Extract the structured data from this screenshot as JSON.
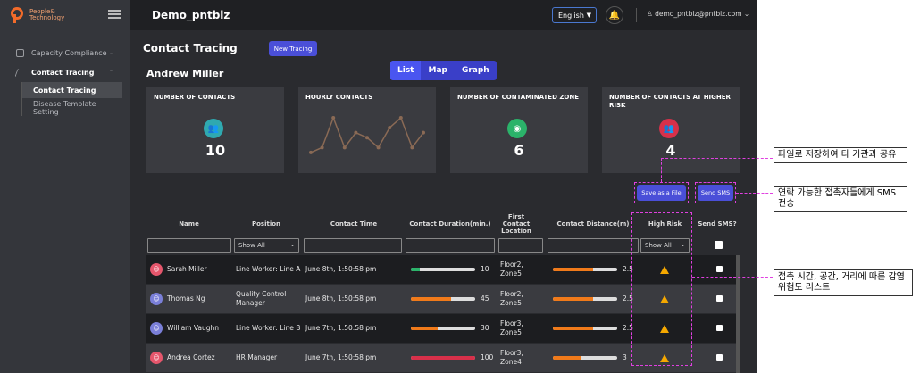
{
  "brand": {
    "logo_text_1": "People&",
    "logo_text_2": "Technology"
  },
  "header": {
    "title": "Demo_pntbiz",
    "language": "English",
    "user_email": "demo_pntbiz@pntbiz.com"
  },
  "sidebar": {
    "items": [
      {
        "label": "Capacity Compliance"
      },
      {
        "label": "Contact Tracing"
      }
    ],
    "sub_items": [
      {
        "label": "Contact Tracing"
      },
      {
        "label": "Disease Template Setting"
      }
    ]
  },
  "page": {
    "title": "Contact Tracing",
    "new_button": "New Tracing",
    "person": "Andrew Miller",
    "views": [
      "List",
      "Map",
      "Graph"
    ]
  },
  "cards": [
    {
      "title": "NUMBER OF CONTACTS",
      "value": "10",
      "icon": "people-icon",
      "color": "#2fa9b0"
    },
    {
      "title": "HOURLY CONTACTS",
      "value": "",
      "icon": "sparkline",
      "color": "#8a6a55"
    },
    {
      "title": "NUMBER OF CONTAMINATED ZONE",
      "value": "6",
      "icon": "location-pin-icon",
      "color": "#2bb36a"
    },
    {
      "title": "NUMBER OF CONTACTS AT HIGHER RISK",
      "value": "4",
      "icon": "people-icon",
      "color": "#d8304a"
    }
  ],
  "hourly_points": [
    2,
    3,
    9,
    3,
    6,
    5,
    3,
    7,
    9,
    3,
    6
  ],
  "actions": {
    "save": "Save as a File",
    "sms": "Send SMS"
  },
  "table": {
    "headers": [
      "Name",
      "Position",
      "Contact Time",
      "Contact Duration(min.)",
      "First Contact Location",
      "Contact Distance(m)",
      "High Risk",
      "Send SMS?"
    ],
    "filter_show_all": "Show All",
    "rows": [
      {
        "name": "Sarah Miller",
        "avatar": "#e5566c",
        "position": "Line Worker: Line A",
        "time": "June 8th, 1:50:58 pm",
        "duration": "10",
        "duration_pct": 0.14,
        "duration_color": "#2bb36a",
        "location": "Floor2, Zone5",
        "distance": "2.5",
        "distance_pct": 0.62,
        "distance_color": "#f07a1a"
      },
      {
        "name": "Thomas Ng",
        "avatar": "#7a7fd8",
        "position": "Quality Control Manager",
        "time": "June 8th, 1:50:58 pm",
        "duration": "45",
        "duration_pct": 0.63,
        "duration_color": "#f07a1a",
        "location": "Floor2, Zone5",
        "distance": "2.5",
        "distance_pct": 0.62,
        "distance_color": "#f07a1a"
      },
      {
        "name": "William Vaughn",
        "avatar": "#7a7fd8",
        "position": "Line Worker: Line B",
        "time": "June 7th, 1:50:58 pm",
        "duration": "30",
        "duration_pct": 0.42,
        "duration_color": "#f07a1a",
        "location": "Floor3, Zone5",
        "distance": "2.5",
        "distance_pct": 0.62,
        "distance_color": "#f07a1a"
      },
      {
        "name": "Andrea Cortez",
        "avatar": "#e5566c",
        "position": "HR Manager",
        "time": "June 7th, 1:50:58 pm",
        "duration": "100",
        "duration_pct": 1.0,
        "duration_color": "#d8304a",
        "location": "Floor3, Zone4",
        "distance": "3",
        "distance_pct": 0.45,
        "distance_color": "#f07a1a"
      }
    ]
  },
  "annotations": {
    "save_note": "파일로 저장하여 타 기관과 공유",
    "sms_note": "연락 가능한 접촉자들에게 SMS 전송",
    "risk_note": "접촉 시간, 공간, 거리에 따른 감염 위험도 리스트"
  }
}
